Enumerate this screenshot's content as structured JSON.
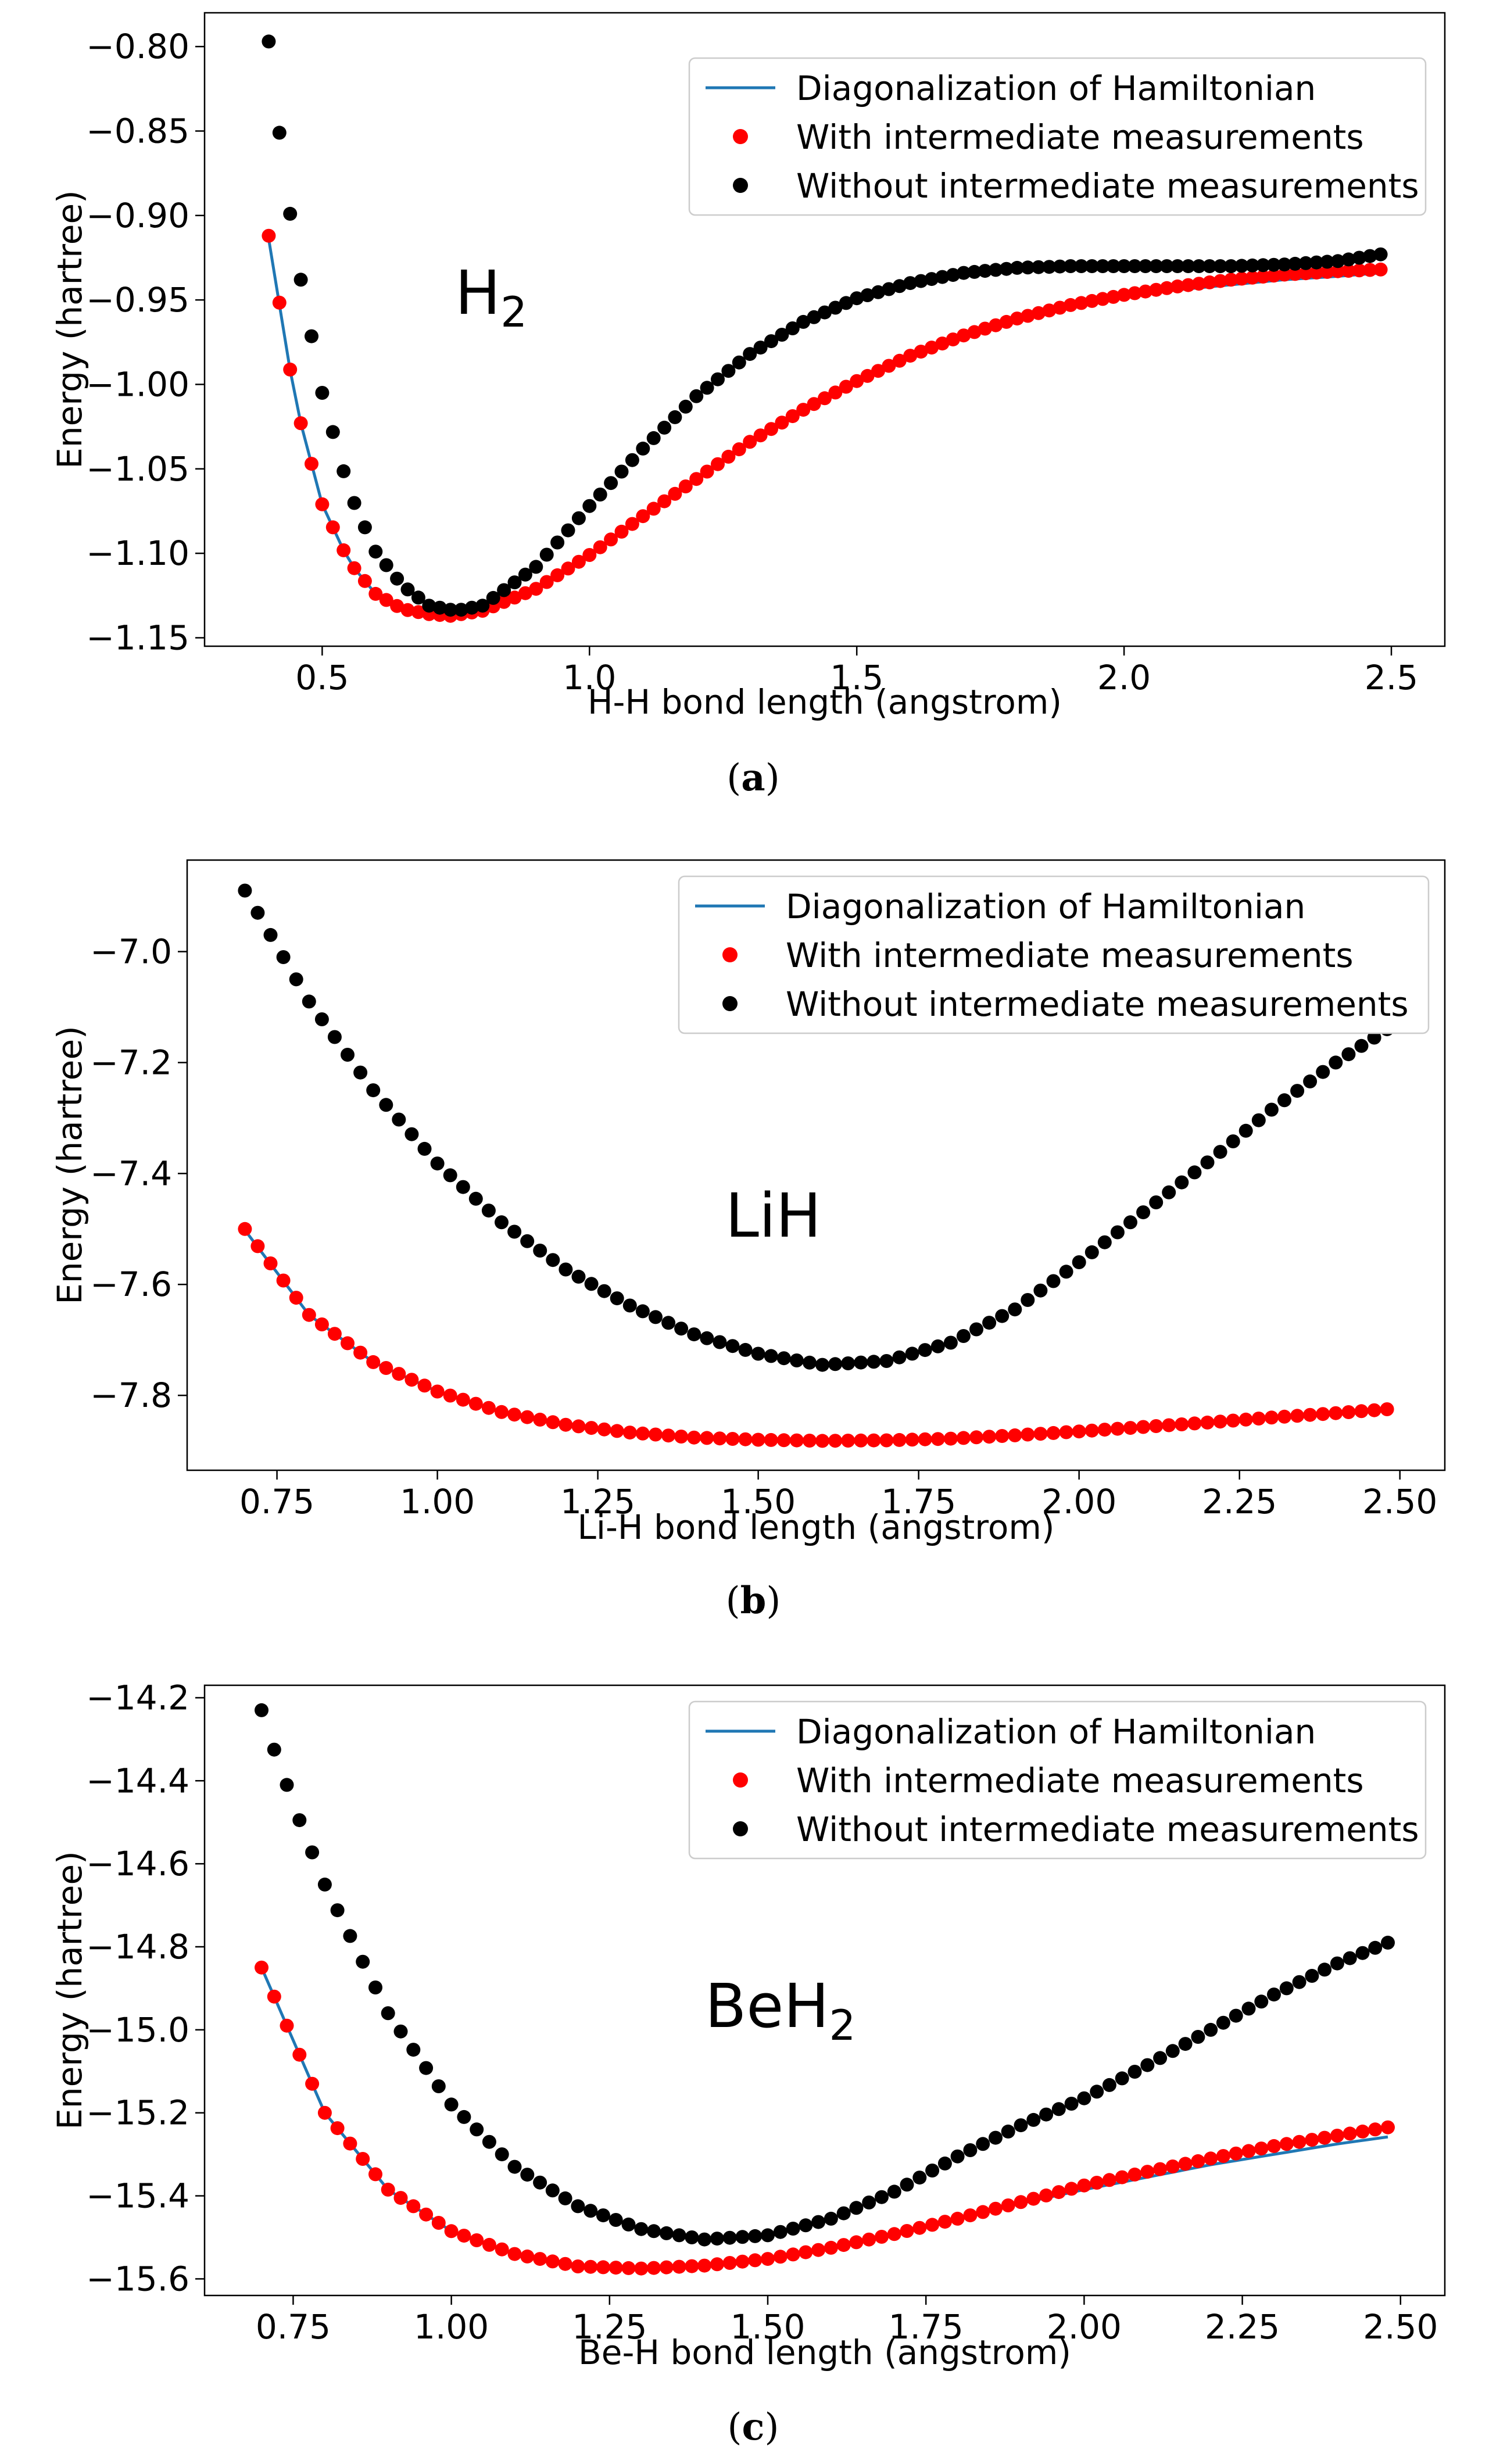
{
  "chart_data": [
    {
      "type": "line",
      "panel_id": "a",
      "caption_letter": "a",
      "title": "",
      "annotation": {
        "base": "H",
        "sub": "2"
      },
      "xlabel": "H-H bond length (angstrom)",
      "ylabel": "Energy (hartree)",
      "xlim": [
        0.28,
        2.6
      ],
      "ylim": [
        -1.155,
        -0.78
      ],
      "xticks": [
        "0.5",
        "1.0",
        "1.5",
        "2.0",
        "2.5"
      ],
      "yticks": [
        "−0.80",
        "−0.85",
        "−0.90",
        "−0.95",
        "−1.00",
        "−1.05",
        "−1.10",
        "−1.15"
      ],
      "legend": [
        "Diagonalization of Hamiltonian",
        "With intermediate measurements",
        "Without intermediate measurements"
      ],
      "legend_position": "top-right",
      "x_start": 0.4,
      "x_step": 0.02,
      "n_points": 105,
      "series": [
        {
          "name": "Diagonalization of Hamiltonian",
          "kind": "line",
          "color": "#1f77b4",
          "knots_x": [
            0.4,
            0.45,
            0.5,
            0.55,
            0.6,
            0.65,
            0.7,
            0.74,
            0.8,
            0.9,
            1.0,
            1.1,
            1.2,
            1.3,
            1.4,
            1.5,
            1.6,
            1.7,
            1.8,
            1.9,
            2.0,
            2.1,
            2.2,
            2.3,
            2.4,
            2.48
          ],
          "knots_y": [
            -0.914,
            -1.011,
            -1.071,
            -1.105,
            -1.124,
            -1.133,
            -1.136,
            -1.137,
            -1.134,
            -1.121,
            -1.101,
            -1.078,
            -1.056,
            -1.034,
            -1.015,
            -0.998,
            -0.983,
            -0.971,
            -0.961,
            -0.954,
            -0.948,
            -0.944,
            -0.941,
            -0.938,
            -0.936,
            -0.934
          ]
        },
        {
          "name": "With intermediate measurements",
          "kind": "scatter",
          "color": "#ff0000",
          "knots_x": [
            0.4,
            0.45,
            0.5,
            0.55,
            0.6,
            0.65,
            0.7,
            0.74,
            0.8,
            0.9,
            1.0,
            1.1,
            1.2,
            1.3,
            1.4,
            1.5,
            1.6,
            1.7,
            1.8,
            1.9,
            2.0,
            2.1,
            2.2,
            2.3,
            2.4,
            2.48
          ],
          "knots_y": [
            -0.912,
            -1.011,
            -1.071,
            -1.105,
            -1.124,
            -1.133,
            -1.136,
            -1.137,
            -1.134,
            -1.121,
            -1.101,
            -1.078,
            -1.056,
            -1.034,
            -1.015,
            -0.998,
            -0.983,
            -0.971,
            -0.961,
            -0.953,
            -0.947,
            -0.942,
            -0.938,
            -0.935,
            -0.933,
            -0.932
          ]
        },
        {
          "name": "Without intermediate measurements",
          "kind": "scatter",
          "color": "#000000",
          "knots_x": [
            0.4,
            0.42,
            0.44,
            0.46,
            0.5,
            0.55,
            0.6,
            0.65,
            0.7,
            0.75,
            0.8,
            0.9,
            1.0,
            1.1,
            1.2,
            1.3,
            1.4,
            1.5,
            1.6,
            1.7,
            1.8,
            1.9,
            2.0,
            2.1,
            2.2,
            2.3,
            2.4,
            2.48
          ],
          "knots_y": [
            -0.797,
            -0.851,
            -0.899,
            -0.938,
            -1.005,
            -1.063,
            -1.099,
            -1.119,
            -1.131,
            -1.134,
            -1.131,
            -1.108,
            -1.072,
            -1.038,
            -1.007,
            -0.982,
            -0.963,
            -0.949,
            -0.94,
            -0.934,
            -0.931,
            -0.93,
            -0.93,
            -0.93,
            -0.93,
            -0.929,
            -0.927,
            -0.923
          ]
        }
      ]
    },
    {
      "type": "line",
      "panel_id": "b",
      "caption_letter": "b",
      "title": "",
      "annotation": {
        "base": "LiH",
        "sub": ""
      },
      "xlabel": "Li-H bond length (angstrom)",
      "ylabel": "Energy (hartree)",
      "xlim": [
        0.61,
        2.57
      ],
      "ylim": [
        -7.935,
        -6.835
      ],
      "xticks": [
        "0.75",
        "1.00",
        "1.25",
        "1.50",
        "1.75",
        "2.00",
        "2.25",
        "2.50"
      ],
      "yticks": [
        "−7.0",
        "−7.2",
        "−7.4",
        "−7.6",
        "−7.8"
      ],
      "legend": [
        "Diagonalization of Hamiltonian",
        "With intermediate measurements",
        "Without intermediate measurements"
      ],
      "legend_position": "top-right",
      "x_start": 0.7,
      "x_step": 0.02,
      "n_points": 90,
      "series": [
        {
          "name": "Diagonalization of Hamiltonian",
          "kind": "line",
          "color": "#1f77b4",
          "knots_x": [
            0.7,
            0.8,
            0.9,
            1.0,
            1.1,
            1.2,
            1.3,
            1.4,
            1.5,
            1.6,
            1.7,
            1.8,
            1.9,
            2.0,
            2.1,
            2.2,
            2.3,
            2.4,
            2.48
          ],
          "knots_y": [
            -7.502,
            -7.655,
            -7.74,
            -7.793,
            -7.83,
            -7.853,
            -7.867,
            -7.876,
            -7.88,
            -7.882,
            -7.881,
            -7.878,
            -7.872,
            -7.865,
            -7.857,
            -7.849,
            -7.841,
            -7.834,
            -7.828
          ]
        },
        {
          "name": "With intermediate measurements",
          "kind": "scatter",
          "color": "#ff0000",
          "knots_x": [
            0.7,
            0.8,
            0.9,
            1.0,
            1.1,
            1.2,
            1.3,
            1.4,
            1.5,
            1.6,
            1.7,
            1.8,
            1.9,
            2.0,
            2.1,
            2.2,
            2.3,
            2.4,
            2.48
          ],
          "knots_y": [
            -7.5,
            -7.655,
            -7.74,
            -7.793,
            -7.83,
            -7.853,
            -7.867,
            -7.876,
            -7.88,
            -7.882,
            -7.881,
            -7.878,
            -7.872,
            -7.865,
            -7.857,
            -7.849,
            -7.84,
            -7.832,
            -7.825
          ]
        },
        {
          "name": "Without intermediate measurements",
          "kind": "scatter",
          "color": "#000000",
          "knots_x": [
            0.7,
            0.8,
            0.9,
            1.0,
            1.1,
            1.2,
            1.3,
            1.4,
            1.5,
            1.6,
            1.7,
            1.8,
            1.9,
            2.0,
            2.1,
            2.2,
            2.3,
            2.4,
            2.48
          ],
          "knots_y": [
            -6.89,
            -7.09,
            -7.25,
            -7.382,
            -7.488,
            -7.573,
            -7.638,
            -7.69,
            -7.725,
            -7.745,
            -7.738,
            -7.705,
            -7.645,
            -7.56,
            -7.47,
            -7.38,
            -7.285,
            -7.2,
            -7.14
          ]
        }
      ]
    },
    {
      "type": "line",
      "panel_id": "c",
      "caption_letter": "c",
      "title": "",
      "annotation": {
        "base": "BeH",
        "sub": "2"
      },
      "xlabel": "Be-H bond length (angstrom)",
      "ylabel": "Energy (hartree)",
      "xlim": [
        0.61,
        2.57
      ],
      "ylim": [
        -15.64,
        -14.17
      ],
      "xticks": [
        "0.75",
        "1.00",
        "1.25",
        "1.50",
        "1.75",
        "2.00",
        "2.25",
        "2.50"
      ],
      "yticks": [
        "−14.2",
        "−14.4",
        "−14.6",
        "−14.8",
        "−15.0",
        "−15.2",
        "−15.4",
        "−15.6"
      ],
      "legend": [
        "Diagonalization of Hamiltonian",
        "With intermediate measurements",
        "Without intermediate measurements"
      ],
      "legend_position": "top-right",
      "x_start": 0.7,
      "x_step": 0.02,
      "n_points": 90,
      "series": [
        {
          "name": "Diagonalization of Hamiltonian",
          "kind": "line",
          "color": "#1f77b4",
          "knots_x": [
            0.7,
            0.8,
            0.9,
            1.0,
            1.1,
            1.2,
            1.3,
            1.4,
            1.5,
            1.6,
            1.7,
            1.8,
            1.9,
            2.0,
            2.1,
            2.2,
            2.3,
            2.4,
            2.48
          ],
          "knots_y": [
            -14.85,
            -15.2,
            -15.385,
            -15.485,
            -15.54,
            -15.57,
            -15.575,
            -15.568,
            -15.552,
            -15.525,
            -15.492,
            -15.455,
            -15.418,
            -15.385,
            -15.355,
            -15.325,
            -15.3,
            -15.275,
            -15.258
          ]
        },
        {
          "name": "With intermediate measurements",
          "kind": "scatter",
          "color": "#ff0000",
          "knots_x": [
            0.7,
            0.8,
            0.9,
            1.0,
            1.1,
            1.2,
            1.3,
            1.4,
            1.5,
            1.6,
            1.7,
            1.8,
            1.9,
            2.0,
            2.1,
            2.2,
            2.3,
            2.4,
            2.48
          ],
          "knots_y": [
            -14.85,
            -15.2,
            -15.385,
            -15.485,
            -15.54,
            -15.57,
            -15.575,
            -15.568,
            -15.552,
            -15.525,
            -15.492,
            -15.455,
            -15.415,
            -15.375,
            -15.342,
            -15.31,
            -15.28,
            -15.255,
            -15.235
          ]
        },
        {
          "name": "Without intermediate measurements",
          "kind": "scatter",
          "color": "#000000",
          "knots_x": [
            0.7,
            0.72,
            0.74,
            0.76,
            0.8,
            0.9,
            1.0,
            1.1,
            1.2,
            1.3,
            1.4,
            1.5,
            1.6,
            1.7,
            1.8,
            1.9,
            2.0,
            2.1,
            2.2,
            2.3,
            2.4,
            2.48
          ],
          "knots_y": [
            -14.23,
            -14.325,
            -14.41,
            -14.495,
            -14.65,
            -14.96,
            -15.18,
            -15.33,
            -15.425,
            -15.48,
            -15.505,
            -15.495,
            -15.455,
            -15.39,
            -15.305,
            -15.23,
            -15.165,
            -15.085,
            -15.0,
            -14.915,
            -14.84,
            -14.79
          ]
        }
      ]
    }
  ]
}
